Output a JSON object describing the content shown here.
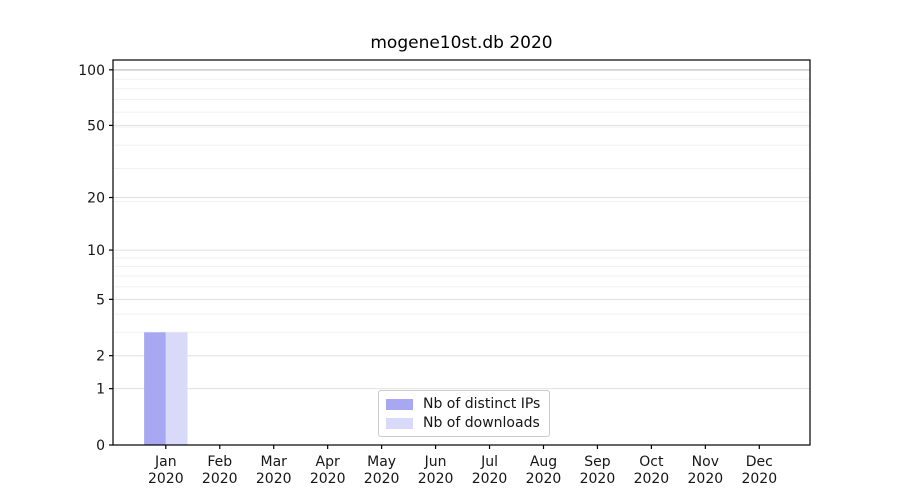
{
  "chart_data": {
    "type": "bar",
    "title": "mogene10st.db 2020",
    "categories": [
      "Jan\n2020",
      "Feb\n2020",
      "Mar\n2020",
      "Apr\n2020",
      "May\n2020",
      "Jun\n2020",
      "Jul\n2020",
      "Aug\n2020",
      "Sep\n2020",
      "Oct\n2020",
      "Nov\n2020",
      "Dec\n2020"
    ],
    "series": [
      {
        "name": "Nb of distinct IPs",
        "color": "#a7a7f2",
        "values": [
          3,
          0,
          0,
          0,
          0,
          0,
          0,
          0,
          0,
          0,
          0,
          0
        ]
      },
      {
        "name": "Nb of downloads",
        "color": "#d9d9f9",
        "values": [
          3,
          0,
          0,
          0,
          0,
          0,
          0,
          0,
          0,
          0,
          0,
          0
        ]
      }
    ],
    "xlabel": "",
    "ylabel": "",
    "yscale": "log1p",
    "yticks": [
      0,
      1,
      2,
      5,
      10,
      20,
      50,
      100
    ],
    "yticks_minor": [
      3,
      4,
      6,
      7,
      8,
      9,
      19,
      29,
      39,
      49,
      59,
      69,
      79,
      89,
      99
    ],
    "ylim": [
      0,
      113
    ],
    "grid": true,
    "legend_position": "lower center",
    "colors": {
      "axis": "#000000",
      "text": "#161616",
      "grid_major": "#e0e0e0",
      "grid_minor": "#f1f1f1",
      "grid_emphasis": "#b8b8b8"
    }
  }
}
